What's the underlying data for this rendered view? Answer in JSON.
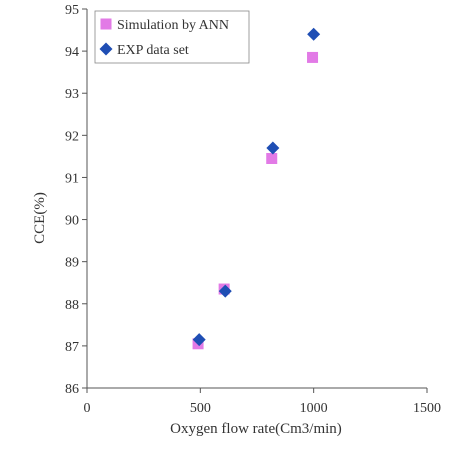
{
  "chart_data": {
    "type": "scatter",
    "xlabel": "Oxygen flow rate(Cm3/min)",
    "ylabel": "CCE(%)",
    "xlim": [
      0,
      1500
    ],
    "ylim": [
      86,
      95
    ],
    "xticks": [
      0,
      500,
      1000,
      1500
    ],
    "yticks": [
      86,
      87,
      88,
      89,
      90,
      91,
      92,
      93,
      94,
      95
    ],
    "grid": false,
    "legend_position": "top-left",
    "series": [
      {
        "name": "Simulation by ANN",
        "marker": "square",
        "color": "#e27ae6",
        "points": [
          {
            "x": 490,
            "y": 87.05
          },
          {
            "x": 605,
            "y": 88.35
          },
          {
            "x": 815,
            "y": 91.45
          },
          {
            "x": 995,
            "y": 93.85
          }
        ]
      },
      {
        "name": "EXP data set",
        "marker": "diamond",
        "color": "#1f4eb4",
        "points": [
          {
            "x": 495,
            "y": 87.15
          },
          {
            "x": 610,
            "y": 88.3
          },
          {
            "x": 820,
            "y": 91.7
          },
          {
            "x": 1000,
            "y": 94.4
          }
        ]
      }
    ]
  }
}
